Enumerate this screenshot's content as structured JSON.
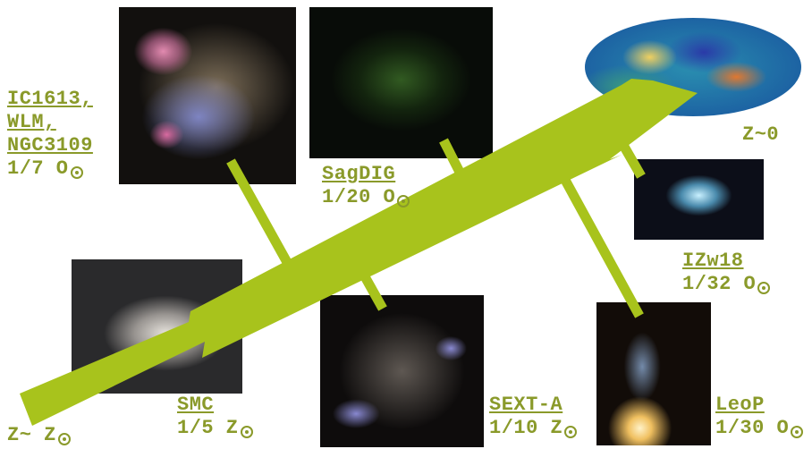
{
  "labels": {
    "ic1613": {
      "names": [
        "IC1613,",
        "WLM,",
        "NGC3109"
      ],
      "metal": "1/7 O"
    },
    "sagdig": {
      "name": "SagDIG",
      "metal": "1/20 O"
    },
    "smc": {
      "name": "SMC",
      "metal": "1/5 Z"
    },
    "sexta": {
      "name": "SEXT-A",
      "metal": "1/10 Z"
    },
    "izw18": {
      "name": "IZw18",
      "metal": "1/32 O"
    },
    "leop": {
      "name": "LeoP",
      "metal": "1/30 O"
    },
    "z_now": "Z~0",
    "z_start": "Z~ Z"
  },
  "colors": {
    "accent": "#a8c31c",
    "label": "#8a9a2a"
  }
}
